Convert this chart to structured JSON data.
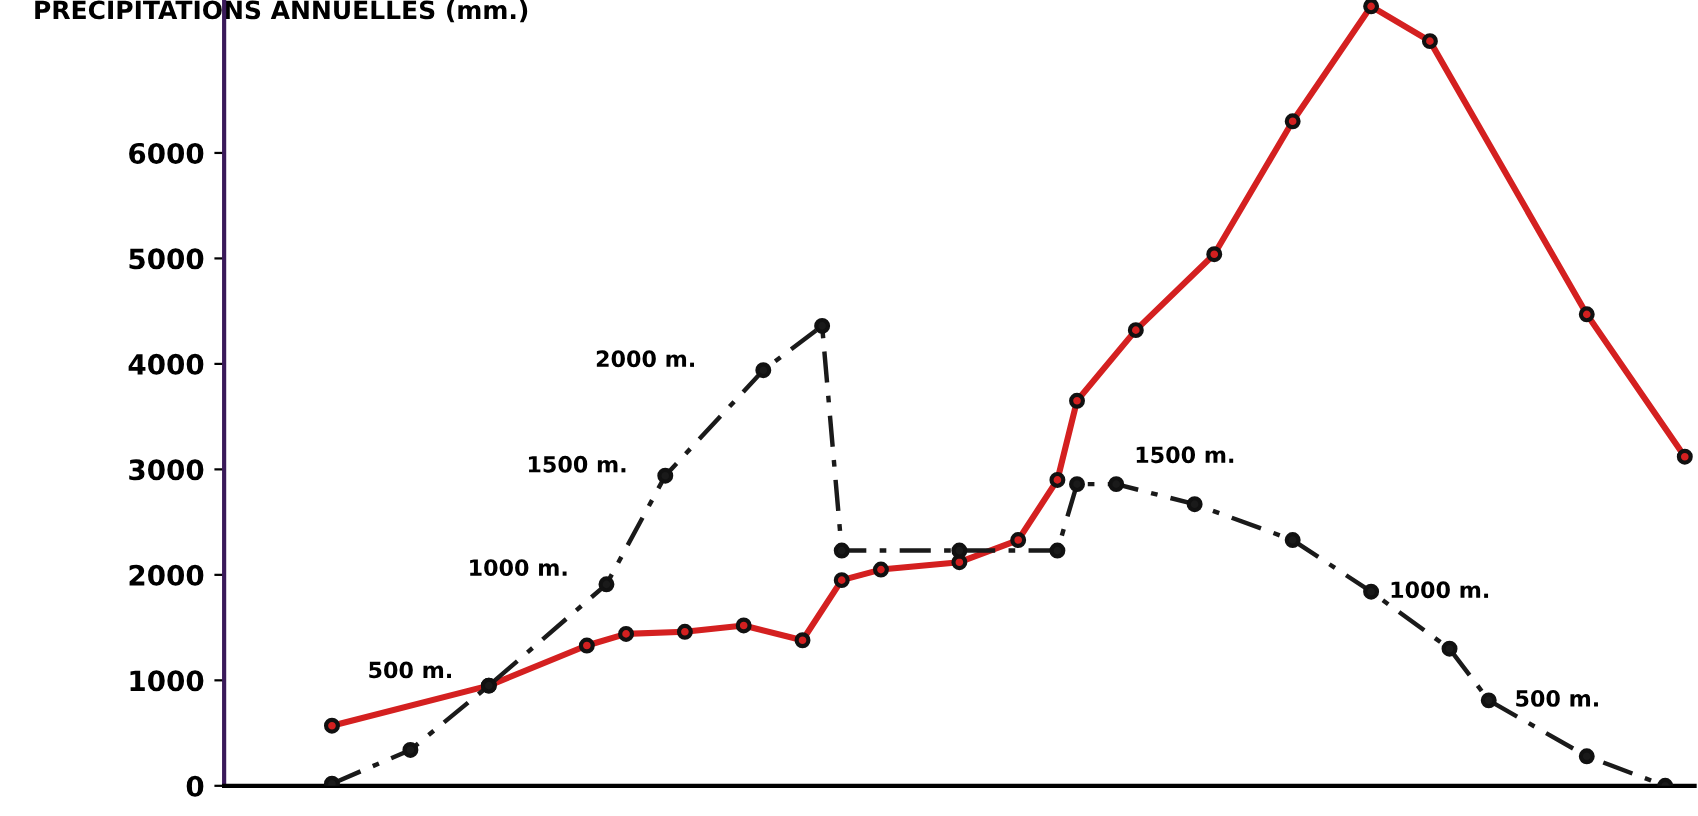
{
  "chart_data": {
    "type": "line",
    "ylabel": "PRECIPITATIONS ANNUELLES (mm.)",
    "categories": [
      null,
      null,
      null,
      null,
      null,
      null,
      null,
      null,
      null,
      null,
      null,
      null,
      null,
      null,
      null,
      null,
      null,
      null,
      null,
      null,
      null,
      null,
      null,
      null,
      null,
      null,
      null,
      null,
      null,
      null,
      null,
      null,
      null,
      null,
      null,
      null,
      null,
      null,
      null,
      null,
      null,
      null,
      null,
      null,
      null,
      null,
      null,
      null,
      null,
      null,
      null,
      null,
      null,
      null,
      null,
      null,
      null,
      null,
      null,
      null,
      null,
      null,
      null,
      null,
      null,
      null,
      null,
      null,
      null,
      null,
      null,
      null,
      null,
      null,
      null
    ],
    "series": [
      {
        "color": "#d42020",
        "line_style": "solid",
        "values": [
          null,
          null,
          null,
          null,
          null,
          570,
          null,
          null,
          null,
          null,
          null,
          null,
          null,
          950,
          null,
          null,
          null,
          null,
          1330,
          null,
          1440,
          null,
          null,
          1460,
          null,
          null,
          1520,
          null,
          null,
          1380,
          null,
          1950,
          null,
          2050,
          null,
          null,
          null,
          2120,
          null,
          null,
          2330,
          null,
          2900,
          3650,
          null,
          null,
          4320,
          null,
          null,
          null,
          5040,
          null,
          null,
          null,
          6300,
          null,
          null,
          null,
          7390,
          null,
          null,
          7060,
          null,
          null,
          null,
          null,
          null,
          null,
          null,
          4470,
          null,
          null,
          null,
          null,
          3120
        ]
      },
      {
        "color": "#1a1a1a",
        "line_style": "dashed",
        "values": [
          null,
          null,
          null,
          null,
          null,
          20,
          null,
          null,
          null,
          340,
          null,
          null,
          null,
          950,
          null,
          null,
          null,
          null,
          null,
          1910,
          null,
          null,
          2940,
          null,
          null,
          null,
          null,
          3940,
          null,
          null,
          4360,
          2230,
          null,
          null,
          null,
          null,
          null,
          2230,
          null,
          null,
          null,
          null,
          2230,
          2860,
          null,
          2860,
          null,
          null,
          null,
          2670,
          null,
          null,
          null,
          null,
          2330,
          null,
          null,
          null,
          1840,
          null,
          null,
          null,
          1300,
          null,
          810,
          null,
          null,
          null,
          null,
          280,
          null,
          null,
          null,
          0,
          null
        ]
      }
    ],
    "ylim": [
      0,
      7450
    ],
    "yticks": [
      0,
      1000,
      2000,
      3000,
      4000,
      5000,
      6000
    ],
    "tick_labels": "y",
    "marker": "circle",
    "grid": false,
    "annotations": [
      "500 m.",
      "1000 m.",
      "1500 m.",
      "2000 m.",
      "1500 m.",
      "1000 m.",
      "500 m."
    ]
  }
}
